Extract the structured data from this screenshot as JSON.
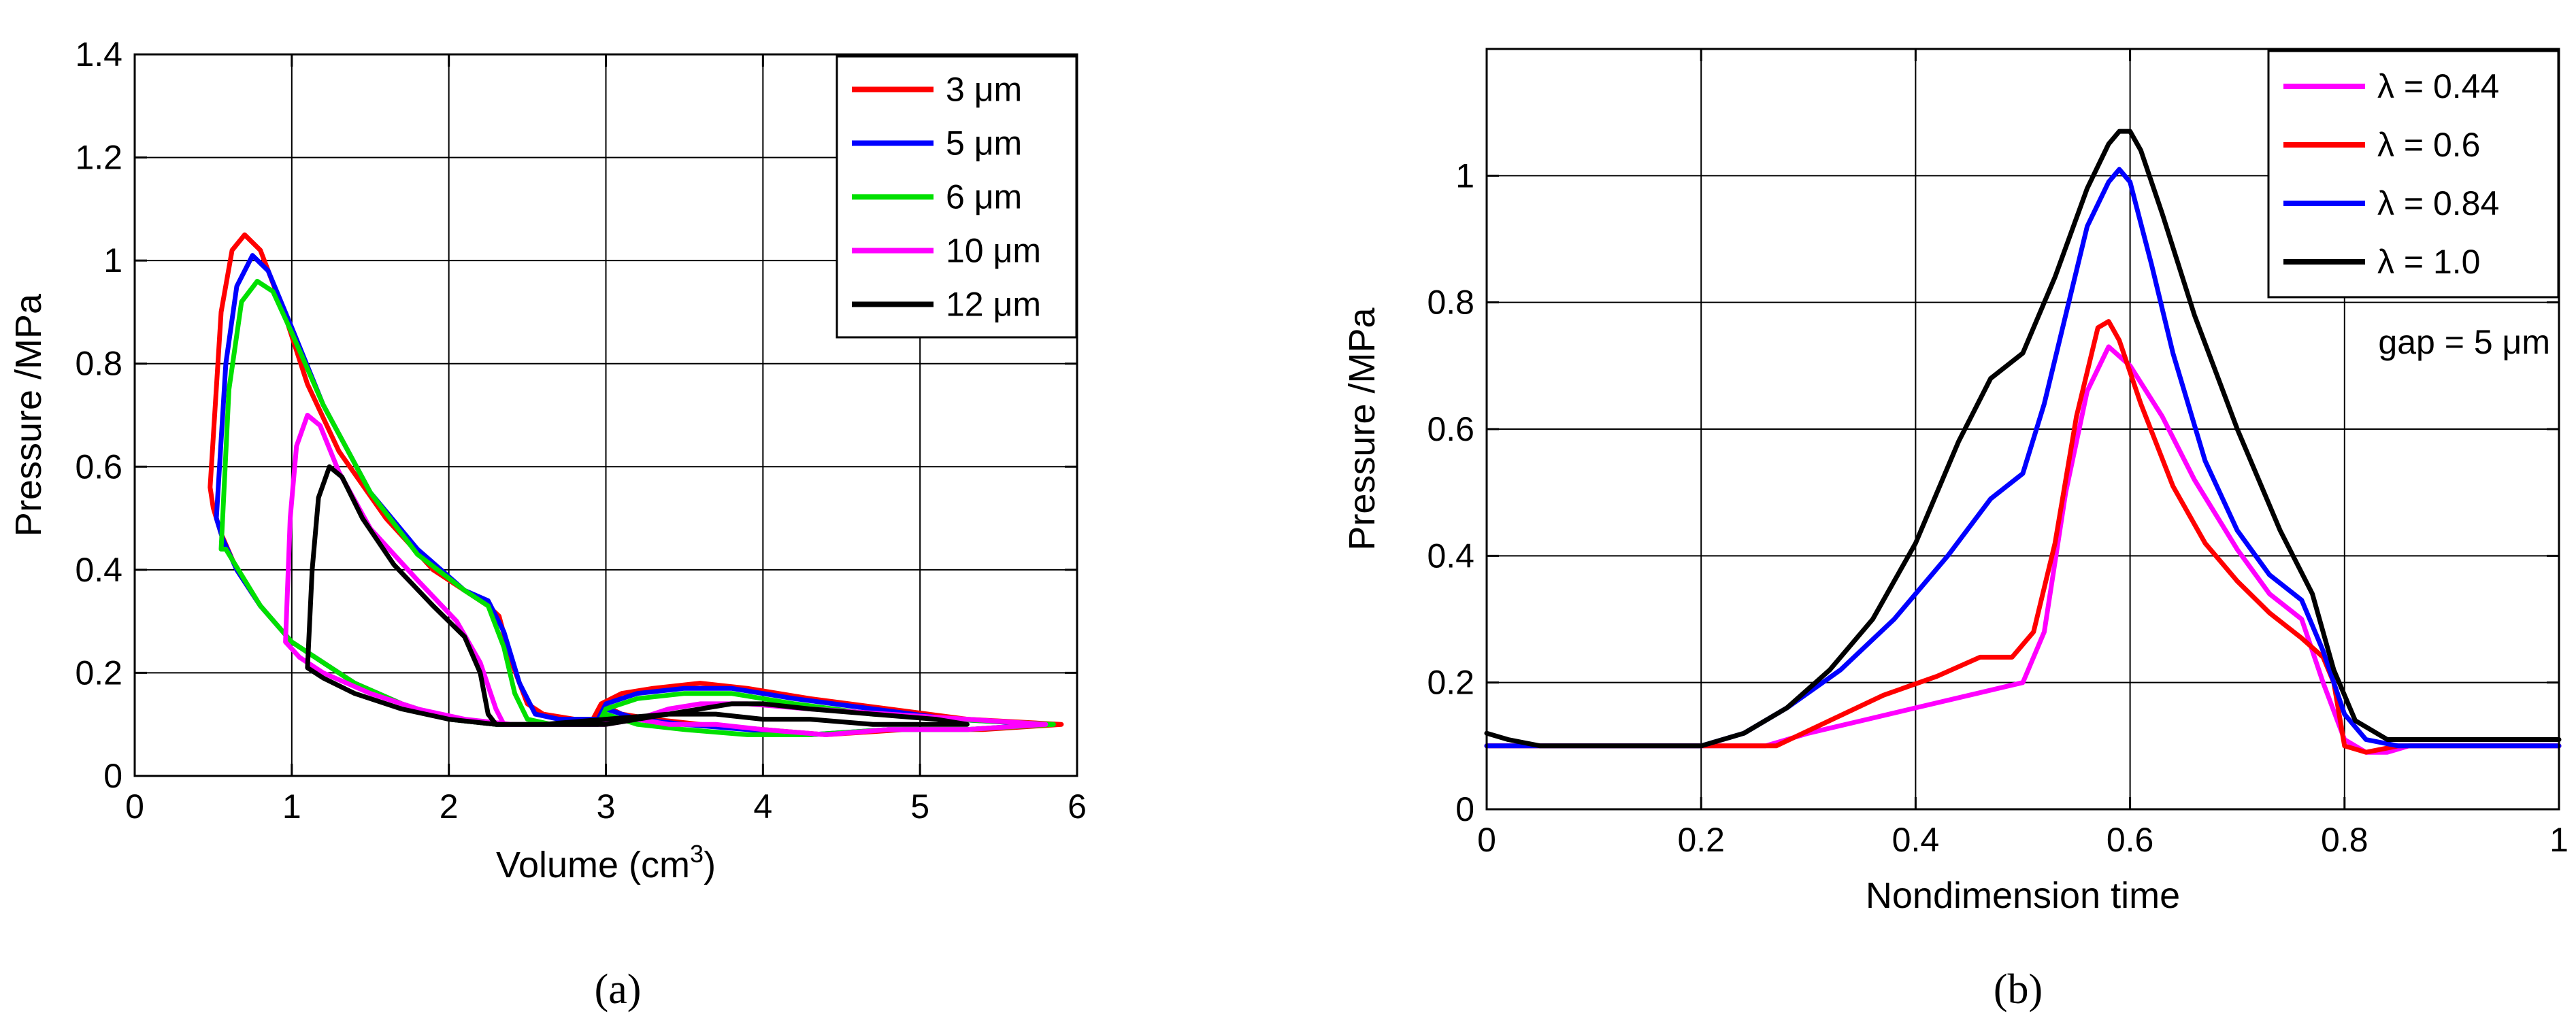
{
  "chart_data": [
    {
      "type": "line",
      "panel_label": "(a)",
      "xlabel": "Volume (cm3)",
      "xlabel_parts": {
        "base": "Volume (cm",
        "sup": "3",
        "close": ")"
      },
      "ylabel": "Pressure /MPa",
      "xlim": [
        0,
        6
      ],
      "ylim": [
        0,
        1.4
      ],
      "xticks": [
        0,
        1,
        2,
        3,
        4,
        5,
        6
      ],
      "yticks": [
        0,
        0.2,
        0.4,
        0.6,
        0.8,
        1,
        1.2,
        1.4
      ],
      "xtick_labels": [
        "0",
        "1",
        "2",
        "3",
        "4",
        "5",
        "6"
      ],
      "ytick_labels": [
        "0",
        "0.2",
        "0.4",
        "0.6",
        "0.8",
        "1",
        "1.2",
        "1.4"
      ],
      "grid": true,
      "legend_position": "top-right",
      "series": [
        {
          "name": "3 μm",
          "color": "#ff0000",
          "x": [
            0.48,
            0.55,
            0.62,
            0.7,
            0.8,
            0.95,
            1.1,
            1.3,
            1.6,
            1.9,
            2.1,
            2.25,
            2.32,
            2.4,
            2.5,
            2.6,
            2.8,
            2.95,
            2.97,
            3.1,
            3.3,
            3.6,
            3.9,
            4.3,
            4.8,
            5.3,
            5.9,
            5.9,
            5.4,
            4.9,
            4.4,
            4.0,
            3.6,
            3.3,
            3.1,
            2.97,
            2.9,
            2.6,
            2.3,
            2.0,
            1.7,
            1.4,
            1.2,
            1.0,
            0.8,
            0.65,
            0.55,
            0.5,
            0.48
          ],
          "y": [
            0.56,
            0.9,
            1.02,
            1.05,
            1.02,
            0.9,
            0.76,
            0.63,
            0.5,
            0.4,
            0.36,
            0.33,
            0.31,
            0.22,
            0.14,
            0.12,
            0.11,
            0.11,
            0.14,
            0.16,
            0.17,
            0.18,
            0.17,
            0.15,
            0.13,
            0.11,
            0.1,
            0.1,
            0.09,
            0.09,
            0.08,
            0.09,
            0.1,
            0.11,
            0.12,
            0.14,
            0.1,
            0.1,
            0.1,
            0.11,
            0.14,
            0.18,
            0.22,
            0.26,
            0.33,
            0.4,
            0.47,
            0.52,
            0.56
          ]
        },
        {
          "name": "5 μm",
          "color": "#0000ff",
          "x": [
            0.52,
            0.58,
            0.65,
            0.75,
            0.85,
            1.0,
            1.2,
            1.5,
            1.8,
            2.1,
            2.25,
            2.35,
            2.45,
            2.55,
            2.7,
            2.95,
            3.0,
            3.2,
            3.5,
            3.8,
            4.2,
            4.7,
            5.2,
            5.8,
            5.8,
            5.3,
            4.8,
            4.3,
            3.9,
            3.5,
            3.2,
            3.0,
            2.95,
            2.6,
            2.3,
            2.0,
            1.7,
            1.4,
            1.2,
            1.0,
            0.8,
            0.65,
            0.56,
            0.52
          ],
          "y": [
            0.5,
            0.8,
            0.95,
            1.01,
            0.98,
            0.87,
            0.72,
            0.55,
            0.44,
            0.36,
            0.34,
            0.28,
            0.18,
            0.12,
            0.11,
            0.11,
            0.14,
            0.16,
            0.17,
            0.17,
            0.15,
            0.13,
            0.11,
            0.1,
            0.1,
            0.09,
            0.09,
            0.08,
            0.09,
            0.1,
            0.11,
            0.13,
            0.1,
            0.1,
            0.1,
            0.11,
            0.14,
            0.18,
            0.22,
            0.26,
            0.33,
            0.4,
            0.46,
            0.5
          ]
        },
        {
          "name": "6 μm",
          "color": "#00e000",
          "x": [
            0.55,
            0.6,
            0.68,
            0.78,
            0.88,
            1.0,
            1.2,
            1.5,
            1.8,
            2.1,
            2.25,
            2.35,
            2.42,
            2.5,
            2.65,
            2.95,
            3.0,
            3.2,
            3.5,
            3.8,
            4.2,
            4.7,
            5.2,
            5.85,
            5.85,
            5.3,
            4.8,
            4.3,
            3.9,
            3.5,
            3.2,
            3.0,
            2.95,
            2.6,
            2.3,
            2.0,
            1.7,
            1.4,
            1.2,
            1.0,
            0.8,
            0.66,
            0.58,
            0.55
          ],
          "y": [
            0.44,
            0.75,
            0.92,
            0.96,
            0.94,
            0.86,
            0.72,
            0.55,
            0.43,
            0.36,
            0.33,
            0.25,
            0.16,
            0.11,
            0.1,
            0.1,
            0.13,
            0.15,
            0.16,
            0.16,
            0.14,
            0.12,
            0.11,
            0.1,
            0.1,
            0.09,
            0.09,
            0.08,
            0.08,
            0.09,
            0.1,
            0.12,
            0.1,
            0.1,
            0.1,
            0.11,
            0.14,
            0.18,
            0.22,
            0.26,
            0.33,
            0.4,
            0.44,
            0.44
          ]
        },
        {
          "name": "10 μm",
          "color": "#ff00ff",
          "x": [
            0.96,
            0.99,
            1.03,
            1.1,
            1.18,
            1.3,
            1.5,
            1.8,
            2.05,
            2.2,
            2.3,
            2.35,
            2.45,
            2.7,
            3.2,
            3.4,
            3.6,
            3.9,
            4.3,
            4.8,
            5.3,
            5.8,
            5.8,
            5.3,
            4.8,
            4.4,
            4.0,
            3.7,
            3.4,
            3.2,
            3.0,
            2.7,
            2.4,
            2.1,
            1.8,
            1.5,
            1.2,
            1.05,
            0.96
          ],
          "y": [
            0.26,
            0.5,
            0.64,
            0.7,
            0.68,
            0.59,
            0.48,
            0.38,
            0.3,
            0.22,
            0.13,
            0.1,
            0.1,
            0.1,
            0.11,
            0.13,
            0.14,
            0.14,
            0.13,
            0.12,
            0.11,
            0.1,
            0.1,
            0.09,
            0.09,
            0.08,
            0.09,
            0.1,
            0.1,
            0.11,
            0.1,
            0.1,
            0.1,
            0.11,
            0.13,
            0.16,
            0.2,
            0.23,
            0.26
          ]
        },
        {
          "name": "12 μm",
          "color": "#000000",
          "x": [
            1.1,
            1.13,
            1.17,
            1.24,
            1.32,
            1.45,
            1.65,
            1.9,
            2.1,
            2.2,
            2.25,
            2.3,
            2.4,
            2.6,
            3.4,
            3.6,
            3.8,
            4.0,
            4.3,
            4.7,
            5.1,
            5.3,
            5.1,
            4.7,
            4.3,
            4.0,
            3.7,
            3.5,
            3.4,
            3.0,
            2.6,
            2.3,
            2.0,
            1.7,
            1.4,
            1.2,
            1.1
          ],
          "y": [
            0.21,
            0.4,
            0.54,
            0.6,
            0.58,
            0.5,
            0.41,
            0.33,
            0.27,
            0.2,
            0.12,
            0.1,
            0.1,
            0.1,
            0.12,
            0.13,
            0.14,
            0.14,
            0.13,
            0.12,
            0.11,
            0.1,
            0.1,
            0.1,
            0.11,
            0.11,
            0.12,
            0.12,
            0.12,
            0.1,
            0.1,
            0.1,
            0.11,
            0.13,
            0.16,
            0.19,
            0.21
          ]
        }
      ]
    },
    {
      "type": "line",
      "panel_label": "(b)",
      "xlabel": "Nondimension time",
      "ylabel": "Pressure /MPa",
      "xlim": [
        0,
        1
      ],
      "ylim": [
        0,
        1.2
      ],
      "xticks": [
        0,
        0.2,
        0.4,
        0.6,
        0.8,
        1
      ],
      "yticks": [
        0,
        0.2,
        0.4,
        0.6,
        0.8,
        1
      ],
      "xtick_labels": [
        "0",
        "0.2",
        "0.4",
        "0.6",
        "0.8",
        "1"
      ],
      "ytick_labels": [
        "0",
        "0.2",
        "0.4",
        "0.6",
        "0.8",
        "1"
      ],
      "grid": true,
      "legend_position": "top-right",
      "annotation": "gap = 5 μm",
      "series": [
        {
          "name": "λ = 0.44",
          "color": "#ff00ff",
          "x": [
            0,
            0.1,
            0.2,
            0.26,
            0.3,
            0.35,
            0.4,
            0.45,
            0.5,
            0.52,
            0.54,
            0.56,
            0.58,
            0.6,
            0.63,
            0.66,
            0.7,
            0.73,
            0.76,
            0.78,
            0.8,
            0.82,
            0.84,
            0.86,
            0.9,
            1.0
          ],
          "y": [
            0.1,
            0.1,
            0.1,
            0.1,
            0.12,
            0.14,
            0.16,
            0.18,
            0.2,
            0.28,
            0.5,
            0.66,
            0.73,
            0.7,
            0.62,
            0.52,
            0.41,
            0.34,
            0.3,
            0.2,
            0.11,
            0.09,
            0.09,
            0.1,
            0.1,
            0.1
          ]
        },
        {
          "name": "λ = 0.6",
          "color": "#ff0000",
          "x": [
            0,
            0.1,
            0.2,
            0.27,
            0.32,
            0.37,
            0.42,
            0.46,
            0.49,
            0.51,
            0.53,
            0.55,
            0.57,
            0.58,
            0.59,
            0.61,
            0.64,
            0.67,
            0.7,
            0.73,
            0.76,
            0.78,
            0.79,
            0.8,
            0.82,
            0.85,
            0.9,
            1.0
          ],
          "y": [
            0.1,
            0.1,
            0.1,
            0.1,
            0.14,
            0.18,
            0.21,
            0.24,
            0.24,
            0.28,
            0.42,
            0.62,
            0.76,
            0.77,
            0.74,
            0.64,
            0.51,
            0.42,
            0.36,
            0.31,
            0.27,
            0.24,
            0.2,
            0.1,
            0.09,
            0.1,
            0.1,
            0.1
          ]
        },
        {
          "name": "λ = 0.84",
          "color": "#0000ff",
          "x": [
            0,
            0.1,
            0.2,
            0.24,
            0.28,
            0.33,
            0.38,
            0.43,
            0.47,
            0.5,
            0.52,
            0.54,
            0.56,
            0.58,
            0.59,
            0.6,
            0.62,
            0.64,
            0.67,
            0.7,
            0.73,
            0.76,
            0.78,
            0.8,
            0.82,
            0.85,
            0.9,
            1.0
          ],
          "y": [
            0.1,
            0.1,
            0.1,
            0.12,
            0.16,
            0.22,
            0.3,
            0.4,
            0.49,
            0.53,
            0.64,
            0.78,
            0.92,
            0.99,
            1.01,
            0.99,
            0.86,
            0.72,
            0.55,
            0.44,
            0.37,
            0.33,
            0.25,
            0.15,
            0.11,
            0.1,
            0.1,
            0.1
          ]
        },
        {
          "name": "λ = 1.0",
          "color": "#000000",
          "x": [
            0,
            0.02,
            0.05,
            0.1,
            0.2,
            0.24,
            0.28,
            0.32,
            0.36,
            0.4,
            0.44,
            0.47,
            0.5,
            0.53,
            0.56,
            0.58,
            0.59,
            0.6,
            0.61,
            0.63,
            0.66,
            0.7,
            0.74,
            0.77,
            0.79,
            0.81,
            0.84,
            0.88,
            1.0
          ],
          "y": [
            0.12,
            0.11,
            0.1,
            0.1,
            0.1,
            0.12,
            0.16,
            0.22,
            0.3,
            0.42,
            0.58,
            0.68,
            0.72,
            0.84,
            0.98,
            1.05,
            1.07,
            1.07,
            1.04,
            0.94,
            0.78,
            0.6,
            0.44,
            0.34,
            0.22,
            0.14,
            0.11,
            0.11,
            0.11
          ]
        }
      ]
    }
  ]
}
